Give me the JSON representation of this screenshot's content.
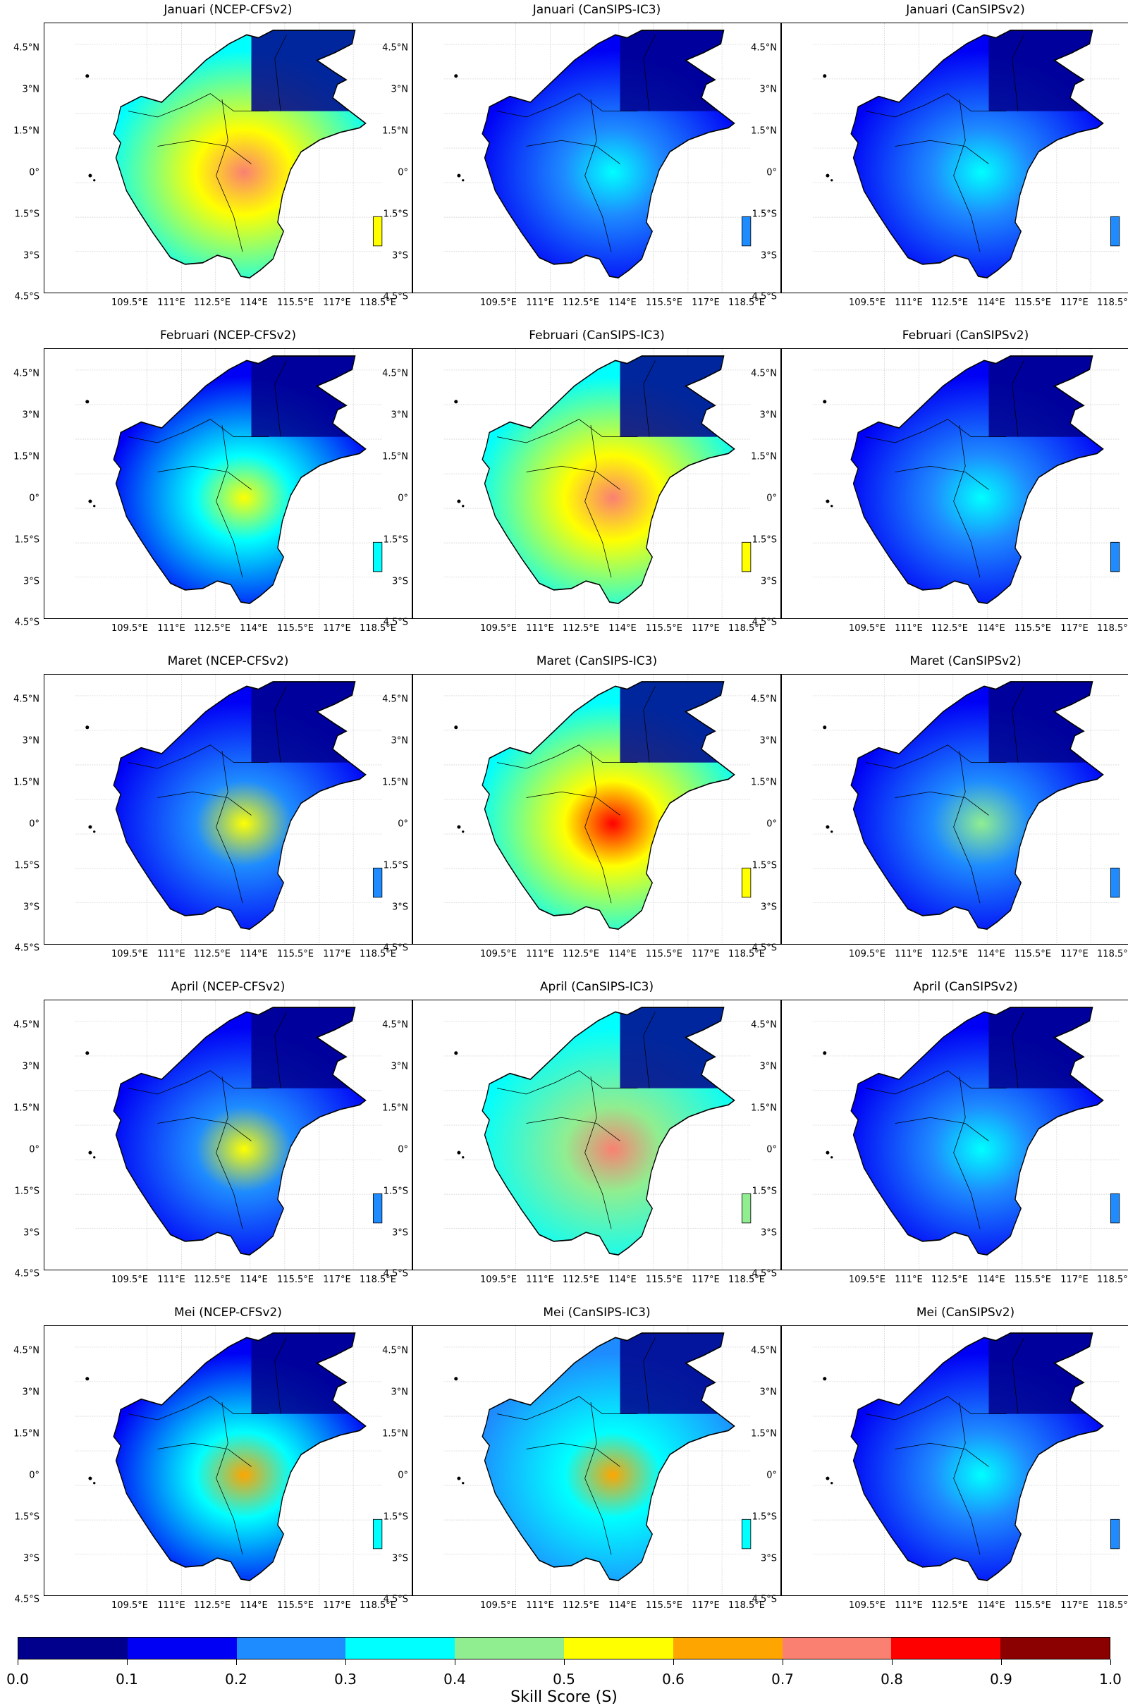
{
  "figure": {
    "colorbar_label": "Skill Score (S)",
    "colorbar_ticks": [
      "0.0",
      "0.1",
      "0.2",
      "0.3",
      "0.4",
      "0.5",
      "0.6",
      "0.7",
      "0.8",
      "0.9",
      "1.0"
    ],
    "colorbar_colors": [
      "#00008c",
      "#0000f5",
      "#1e8cff",
      "#00ffff",
      "#90ee90",
      "#ffff00",
      "#ffa500",
      "#fa8072",
      "#ff0000",
      "#8b0000"
    ]
  },
  "axes": {
    "lat_labels": [
      "4.5°N",
      "3°N",
      "1.5°N",
      "0°",
      "1.5°S",
      "3°S",
      "4.5°S"
    ],
    "lon_labels": [
      "109.5°E",
      "111°E",
      "112.5°E",
      "114°E",
      "115.5°E",
      "117°E",
      "118.5°E"
    ]
  },
  "models": [
    "NCEP-CFSv2",
    "CanSIPS-IC3",
    "CanSIPSv2"
  ],
  "months": [
    "Januari",
    "Februari",
    "Maret",
    "April",
    "Mei"
  ],
  "panels": [
    {
      "title": "Januari (NCEP-CFSv2)",
      "levels": [
        0.3,
        0.5,
        0.7
      ]
    },
    {
      "title": "Januari (CanSIPS-IC3)",
      "levels": [
        0.1,
        0.2,
        0.3
      ]
    },
    {
      "title": "Januari (CanSIPSv2)",
      "levels": [
        0.1,
        0.2,
        0.3
      ]
    },
    {
      "title": "Februari (NCEP-CFSv2)",
      "levels": [
        0.1,
        0.3,
        0.5
      ]
    },
    {
      "title": "Februari (CanSIPS-IC3)",
      "levels": [
        0.3,
        0.5,
        0.7
      ]
    },
    {
      "title": "Februari (CanSIPSv2)",
      "levels": [
        0.1,
        0.2,
        0.3
      ]
    },
    {
      "title": "Maret (NCEP-CFSv2)",
      "levels": [
        0.1,
        0.2,
        0.5
      ]
    },
    {
      "title": "Maret (CanSIPS-IC3)",
      "levels": [
        0.3,
        0.5,
        0.8
      ]
    },
    {
      "title": "Maret (CanSIPSv2)",
      "levels": [
        0.1,
        0.2,
        0.4
      ]
    },
    {
      "title": "April (NCEP-CFSv2)",
      "levels": [
        0.1,
        0.2,
        0.5
      ]
    },
    {
      "title": "April (CanSIPS-IC3)",
      "levels": [
        0.3,
        0.4,
        0.7
      ]
    },
    {
      "title": "April (CanSIPSv2)",
      "levels": [
        0.1,
        0.2,
        0.3
      ]
    },
    {
      "title": "Mei (NCEP-CFSv2)",
      "levels": [
        0.1,
        0.3,
        0.6
      ]
    },
    {
      "title": "Mei (CanSIPS-IC3)",
      "levels": [
        0.2,
        0.3,
        0.6
      ]
    },
    {
      "title": "Mei (CanSIPSv2)",
      "levels": [
        0.1,
        0.2,
        0.3
      ]
    }
  ]
}
